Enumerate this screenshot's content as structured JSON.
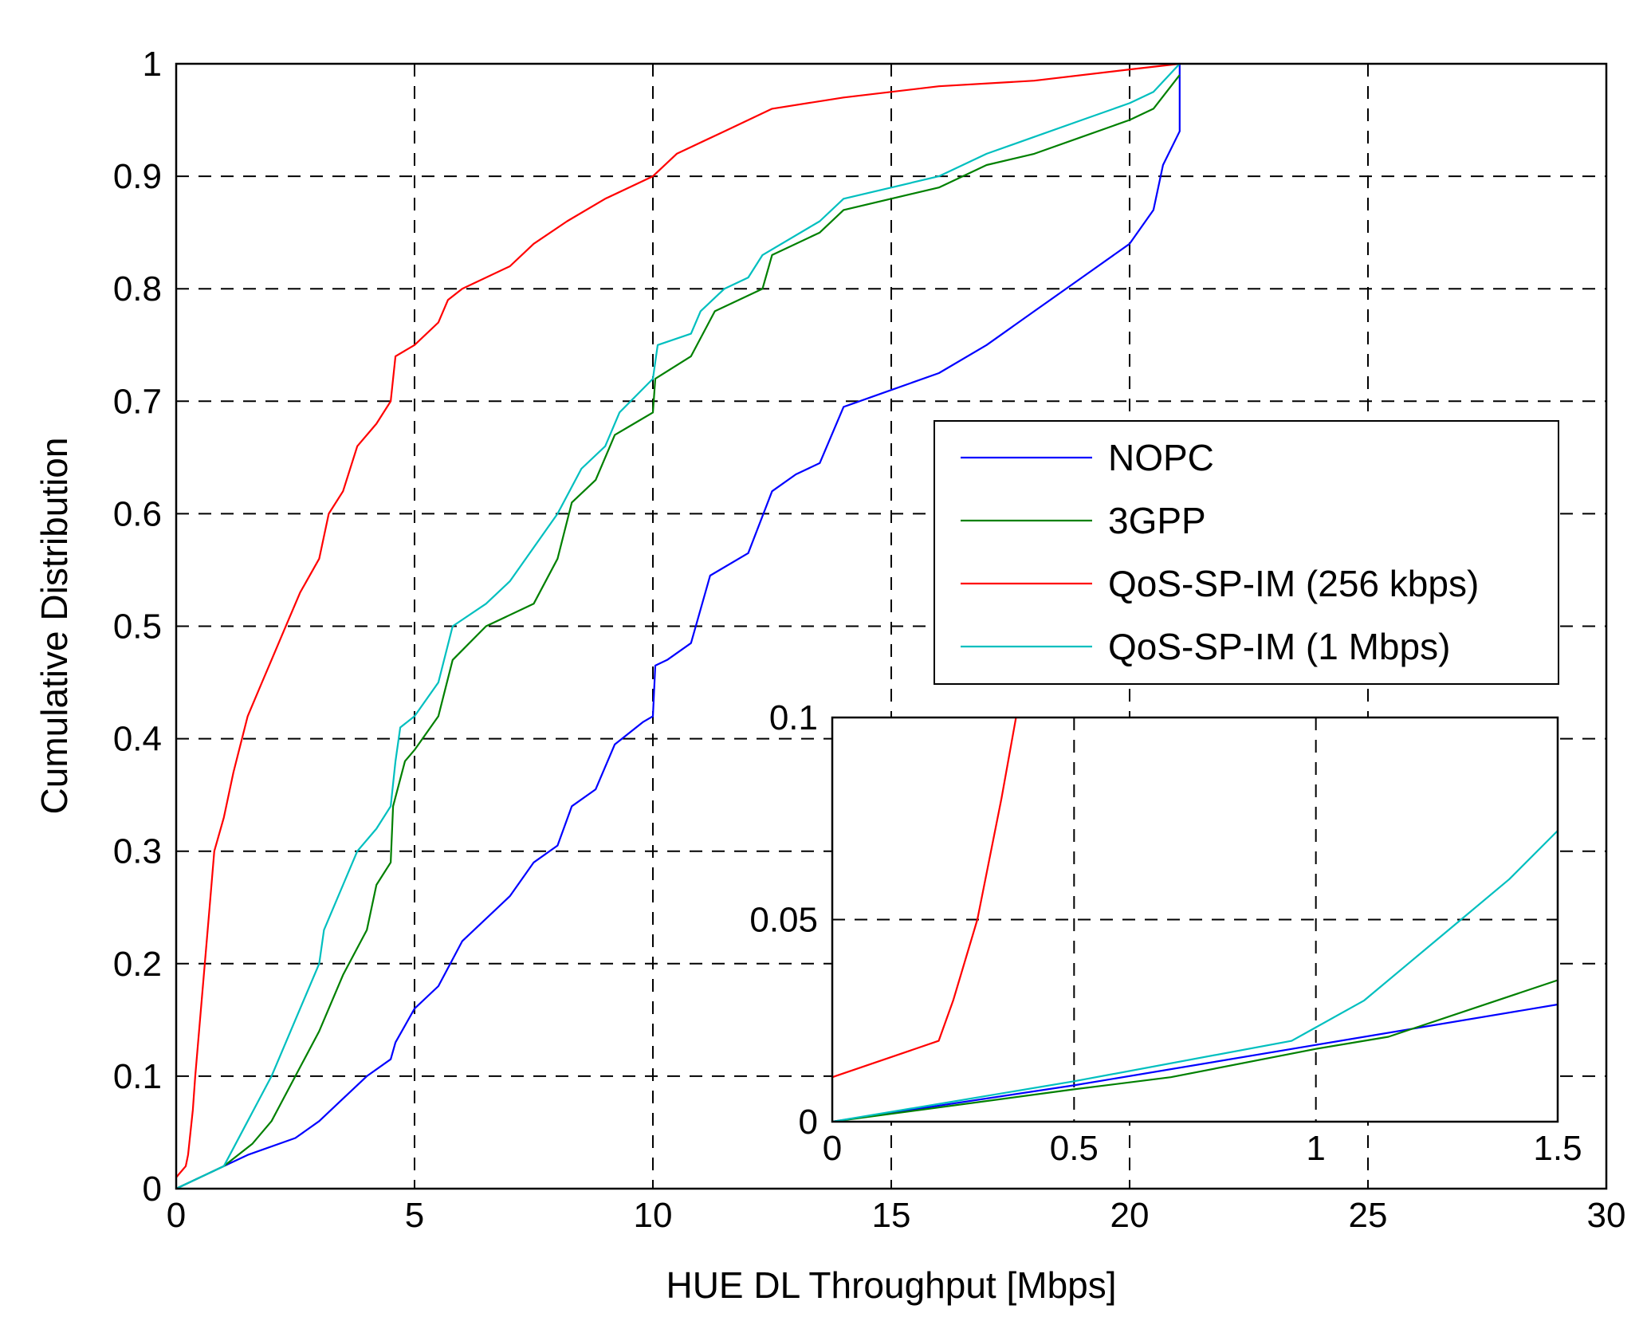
{
  "chart_data": [
    {
      "type": "line",
      "role": "main",
      "xlabel": "HUE DL Throughput [Mbps]",
      "ylabel": "Cumulative Distribution",
      "xlim": [
        0,
        30
      ],
      "ylim": [
        0,
        1
      ],
      "grid": true,
      "xticks": [
        0,
        5,
        10,
        15,
        20,
        25,
        30
      ],
      "xtick_labels": [
        "0",
        "5",
        "10",
        "15",
        "20",
        "25",
        "30"
      ],
      "yticks": [
        0,
        0.1,
        0.2,
        0.3,
        0.4,
        0.5,
        0.6,
        0.7,
        0.8,
        0.9,
        1
      ],
      "ytick_labels": [
        "0",
        "0.1",
        "0.2",
        "0.3",
        "0.4",
        "0.5",
        "0.6",
        "0.7",
        "0.8",
        "0.9",
        "1"
      ],
      "legend_position": "right-middle",
      "series": [
        {
          "name": "NOPC",
          "color": "#0000ff",
          "points": [
            [
              0,
              0
            ],
            [
              1,
              0.02
            ],
            [
              1.5,
              0.03
            ],
            [
              2.5,
              0.045
            ],
            [
              3,
              0.06
            ],
            [
              3.5,
              0.08
            ],
            [
              4,
              0.1
            ],
            [
              4.5,
              0.115
            ],
            [
              4.6,
              0.13
            ],
            [
              5,
              0.16
            ],
            [
              5.5,
              0.18
            ],
            [
              6,
              0.22
            ],
            [
              7,
              0.26
            ],
            [
              7.5,
              0.29
            ],
            [
              8,
              0.305
            ],
            [
              8.3,
              0.34
            ],
            [
              8.8,
              0.355
            ],
            [
              9.2,
              0.395
            ],
            [
              9.8,
              0.415
            ],
            [
              10,
              0.42
            ],
            [
              10.05,
              0.465
            ],
            [
              10.3,
              0.47
            ],
            [
              10.8,
              0.485
            ],
            [
              11.2,
              0.545
            ],
            [
              12,
              0.565
            ],
            [
              12.5,
              0.62
            ],
            [
              13,
              0.635
            ],
            [
              13.5,
              0.645
            ],
            [
              14,
              0.695
            ],
            [
              15,
              0.71
            ],
            [
              16,
              0.725
            ],
            [
              17,
              0.75
            ],
            [
              18,
              0.78
            ],
            [
              19,
              0.81
            ],
            [
              20,
              0.84
            ],
            [
              20.5,
              0.87
            ],
            [
              20.7,
              0.91
            ],
            [
              21.05,
              0.94
            ],
            [
              21.05,
              1.0
            ]
          ]
        },
        {
          "name": "3GPP",
          "color": "#008000",
          "points": [
            [
              0,
              0
            ],
            [
              1,
              0.02
            ],
            [
              1.6,
              0.04
            ],
            [
              2,
              0.06
            ],
            [
              2.5,
              0.1
            ],
            [
              3,
              0.14
            ],
            [
              3.5,
              0.19
            ],
            [
              4,
              0.23
            ],
            [
              4.2,
              0.27
            ],
            [
              4.5,
              0.29
            ],
            [
              4.55,
              0.34
            ],
            [
              4.8,
              0.38
            ],
            [
              5,
              0.39
            ],
            [
              5.5,
              0.42
            ],
            [
              5.8,
              0.47
            ],
            [
              6.5,
              0.5
            ],
            [
              7.5,
              0.52
            ],
            [
              8,
              0.56
            ],
            [
              8.3,
              0.61
            ],
            [
              8.8,
              0.63
            ],
            [
              9.2,
              0.67
            ],
            [
              9.6,
              0.68
            ],
            [
              10,
              0.69
            ],
            [
              10.05,
              0.72
            ],
            [
              10.8,
              0.74
            ],
            [
              11.3,
              0.78
            ],
            [
              12.3,
              0.8
            ],
            [
              12.5,
              0.83
            ],
            [
              13.5,
              0.85
            ],
            [
              14,
              0.87
            ],
            [
              16,
              0.89
            ],
            [
              17,
              0.91
            ],
            [
              18,
              0.92
            ],
            [
              19,
              0.935
            ],
            [
              20,
              0.95
            ],
            [
              20.5,
              0.96
            ],
            [
              21.05,
              0.99
            ]
          ]
        },
        {
          "name": "QoS-SP-IM (256 kbps)",
          "color": "#ff0000",
          "points": [
            [
              0,
              0.01
            ],
            [
              0.2,
              0.02
            ],
            [
              0.25,
              0.03
            ],
            [
              0.3,
              0.05
            ],
            [
              0.35,
              0.07
            ],
            [
              0.4,
              0.1
            ],
            [
              0.5,
              0.15
            ],
            [
              0.6,
              0.2
            ],
            [
              0.7,
              0.25
            ],
            [
              0.8,
              0.3
            ],
            [
              1,
              0.33
            ],
            [
              1.2,
              0.37
            ],
            [
              1.5,
              0.42
            ],
            [
              1.8,
              0.45
            ],
            [
              2,
              0.47
            ],
            [
              2.3,
              0.5
            ],
            [
              2.6,
              0.53
            ],
            [
              3,
              0.56
            ],
            [
              3.2,
              0.6
            ],
            [
              3.5,
              0.62
            ],
            [
              3.8,
              0.66
            ],
            [
              4.2,
              0.68
            ],
            [
              4.5,
              0.7
            ],
            [
              4.6,
              0.74
            ],
            [
              5,
              0.75
            ],
            [
              5.5,
              0.77
            ],
            [
              5.7,
              0.79
            ],
            [
              6,
              0.8
            ],
            [
              7,
              0.82
            ],
            [
              7.5,
              0.84
            ],
            [
              8.2,
              0.86
            ],
            [
              9,
              0.88
            ],
            [
              10,
              0.9
            ],
            [
              10.5,
              0.92
            ],
            [
              11.5,
              0.94
            ],
            [
              12.5,
              0.96
            ],
            [
              14,
              0.97
            ],
            [
              16,
              0.98
            ],
            [
              18,
              0.985
            ],
            [
              20,
              0.995
            ],
            [
              21.05,
              1.0
            ]
          ]
        },
        {
          "name": "QoS-SP-IM (1 Mbps)",
          "color": "#00bfbf",
          "points": [
            [
              0,
              0
            ],
            [
              1,
              0.02
            ],
            [
              1.5,
              0.06
            ],
            [
              2,
              0.1
            ],
            [
              2.5,
              0.15
            ],
            [
              3,
              0.2
            ],
            [
              3.1,
              0.23
            ],
            [
              3.5,
              0.27
            ],
            [
              3.8,
              0.3
            ],
            [
              4.2,
              0.32
            ],
            [
              4.5,
              0.34
            ],
            [
              4.6,
              0.38
            ],
            [
              4.7,
              0.41
            ],
            [
              5,
              0.42
            ],
            [
              5.5,
              0.45
            ],
            [
              5.8,
              0.5
            ],
            [
              6.5,
              0.52
            ],
            [
              7,
              0.54
            ],
            [
              7.5,
              0.57
            ],
            [
              8,
              0.6
            ],
            [
              8.5,
              0.64
            ],
            [
              9,
              0.66
            ],
            [
              9.3,
              0.69
            ],
            [
              10,
              0.72
            ],
            [
              10.1,
              0.75
            ],
            [
              10.8,
              0.76
            ],
            [
              11,
              0.78
            ],
            [
              11.5,
              0.8
            ],
            [
              12,
              0.81
            ],
            [
              12.3,
              0.83
            ],
            [
              13.5,
              0.86
            ],
            [
              14,
              0.88
            ],
            [
              16,
              0.9
            ],
            [
              17,
              0.92
            ],
            [
              18,
              0.935
            ],
            [
              19,
              0.95
            ],
            [
              20,
              0.965
            ],
            [
              20.5,
              0.975
            ],
            [
              21.05,
              1.0
            ]
          ]
        }
      ]
    },
    {
      "type": "line",
      "role": "inset",
      "xlim": [
        0,
        1.5
      ],
      "ylim": [
        0,
        0.1
      ],
      "grid": true,
      "xticks": [
        0,
        0.5,
        1,
        1.5
      ],
      "xtick_labels": [
        "0",
        "0.5",
        "1",
        "1.5"
      ],
      "yticks": [
        0,
        0.05,
        0.1
      ],
      "ytick_labels": [
        "0",
        "0.05",
        "0.1"
      ],
      "series": [
        {
          "name": "NOPC",
          "color": "#0000ff",
          "points": [
            [
              0,
              0
            ],
            [
              0.5,
              0.009
            ],
            [
              1,
              0.019
            ],
            [
              1.5,
              0.029
            ]
          ]
        },
        {
          "name": "3GPP",
          "color": "#008000",
          "points": [
            [
              0,
              0
            ],
            [
              0.5,
              0.008
            ],
            [
              0.7,
              0.011
            ],
            [
              1,
              0.018
            ],
            [
              1.15,
              0.021
            ],
            [
              1.5,
              0.035
            ]
          ]
        },
        {
          "name": "QoS-SP-IM (256 kbps)",
          "color": "#ff0000",
          "points": [
            [
              0,
              0.011
            ],
            [
              0.22,
              0.02
            ],
            [
              0.25,
              0.03
            ],
            [
              0.3,
              0.05
            ],
            [
              0.35,
              0.08
            ],
            [
              0.38,
              0.1
            ]
          ]
        },
        {
          "name": "QoS-SP-IM (1 Mbps)",
          "color": "#00bfbf",
          "points": [
            [
              0,
              0
            ],
            [
              0.5,
              0.01
            ],
            [
              0.95,
              0.02
            ],
            [
              1.1,
              0.03
            ],
            [
              1.2,
              0.04
            ],
            [
              1.3,
              0.05
            ],
            [
              1.4,
              0.06
            ],
            [
              1.5,
              0.072
            ]
          ]
        }
      ]
    }
  ]
}
